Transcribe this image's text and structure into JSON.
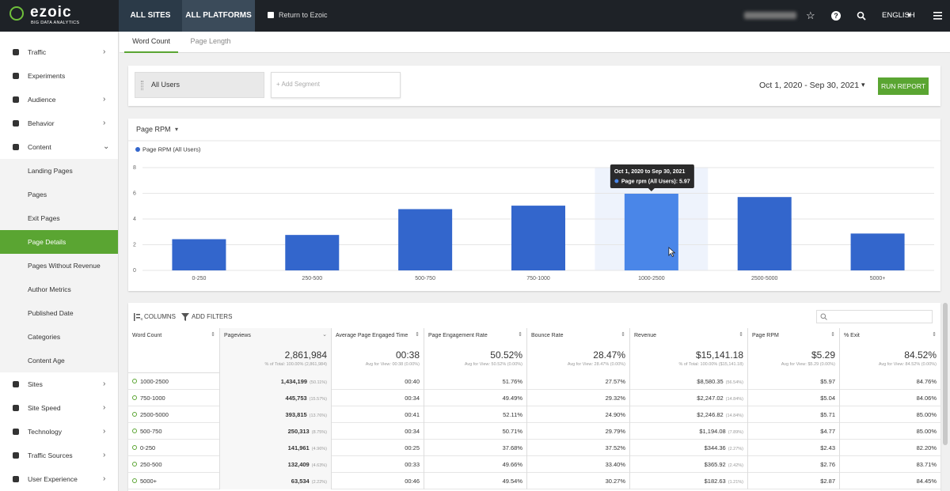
{
  "nav": {
    "logo": "ezoic",
    "logo_sub": "BIG DATA ANALYTICS",
    "tabs": [
      "ALL SITES",
      "ALL PLATFORMS"
    ],
    "return": "Return to Ezoic",
    "language": "ENGLISH"
  },
  "sidebar": [
    {
      "label": "Traffic",
      "chevron": "right"
    },
    {
      "label": "Experiments"
    },
    {
      "label": "Audience",
      "chevron": "right"
    },
    {
      "label": "Behavior",
      "chevron": "right"
    },
    {
      "label": "Content",
      "chevron": "down"
    },
    {
      "label": "Landing Pages",
      "sub": true
    },
    {
      "label": "Pages",
      "sub": true
    },
    {
      "label": "Exit Pages",
      "sub": true
    },
    {
      "label": "Page Details",
      "sub": true,
      "active": true
    },
    {
      "label": "Pages Without Revenue",
      "sub": true
    },
    {
      "label": "Author Metrics",
      "sub": true
    },
    {
      "label": "Published Date",
      "sub": true
    },
    {
      "label": "Categories",
      "sub": true
    },
    {
      "label": "Content Age",
      "sub": true
    },
    {
      "label": "Sites",
      "chevron": "right"
    },
    {
      "label": "Site Speed",
      "chevron": "right"
    },
    {
      "label": "Technology",
      "chevron": "right"
    },
    {
      "label": "Traffic Sources",
      "chevron": "right"
    },
    {
      "label": "User Experience",
      "chevron": "right"
    }
  ],
  "tabs": [
    "Word Count",
    "Page Length"
  ],
  "segment": {
    "current": "All Users",
    "add": "+ Add Segment",
    "date_range": "Oct 1, 2020 - Sep 30, 2021",
    "run": "RUN REPORT"
  },
  "chart_data": {
    "type": "bar",
    "metric": "Page RPM",
    "legend": "Page RPM (All Users)",
    "color": "#3366cc",
    "hover_color": "#4a86e8",
    "categories": [
      "0-250",
      "250-500",
      "500-750",
      "750-1000",
      "1000-2500",
      "2500-5000",
      "5000+"
    ],
    "values": [
      2.43,
      2.76,
      4.77,
      5.04,
      5.97,
      5.71,
      2.87
    ],
    "ylim": [
      0,
      8
    ],
    "yticks": [
      0,
      2,
      4,
      6,
      8
    ],
    "grid": true,
    "tooltip": {
      "title": "Oct 1, 2020 to Sep 30, 2021",
      "label": "Page rpm (All Users): 5.97"
    }
  },
  "table": {
    "toolbar": [
      "COLUMNS",
      "ADD FILTERS"
    ],
    "headers": [
      "Word Count",
      "Pageviews",
      "Average Page Engaged Time",
      "Page Engagement Rate",
      "Bounce Rate",
      "Revenue",
      "Page RPM",
      "% Exit"
    ],
    "totals": [
      {
        "v": "2,861,984",
        "s": "% of Total: 100.00% (2,861,984)"
      },
      {
        "v": "00:38",
        "s": "Avg for View: 00:38 (0.00%)"
      },
      {
        "v": "50.52%",
        "s": "Avg for View: 50.52% (0.00%)"
      },
      {
        "v": "28.47%",
        "s": "Avg for View: 28.47% (0.00%)"
      },
      {
        "v": "$15,141.18",
        "s": "% of Total: 100.00% ($15,141.18)"
      },
      {
        "v": "$5.29",
        "s": "Avg for View: $5.29 (0.00%)"
      },
      {
        "v": "84.52%",
        "s": "Avg for View: 84.52% (0.00%)"
      }
    ],
    "rows": [
      {
        "label": "1000-2500",
        "cells": [
          {
            "v": "1,434,199",
            "s": "(50.11%)"
          },
          {
            "v": "00:40"
          },
          {
            "v": "51.76%"
          },
          {
            "v": "27.57%"
          },
          {
            "v": "$8,580.35",
            "s": "(56.54%)"
          },
          {
            "v": "$5.97"
          },
          {
            "v": "84.76%"
          }
        ]
      },
      {
        "label": "750-1000",
        "cells": [
          {
            "v": "445,753",
            "s": "(15.57%)"
          },
          {
            "v": "00:34"
          },
          {
            "v": "49.49%"
          },
          {
            "v": "29.32%"
          },
          {
            "v": "$2,247.02",
            "s": "(14.84%)"
          },
          {
            "v": "$5.04"
          },
          {
            "v": "84.06%"
          }
        ]
      },
      {
        "label": "2500-5000",
        "cells": [
          {
            "v": "393,815",
            "s": "(13.76%)"
          },
          {
            "v": "00:41"
          },
          {
            "v": "52.11%"
          },
          {
            "v": "24.90%"
          },
          {
            "v": "$2,246.82",
            "s": "(14.84%)"
          },
          {
            "v": "$5.71"
          },
          {
            "v": "85.00%"
          }
        ]
      },
      {
        "label": "500-750",
        "cells": [
          {
            "v": "250,313",
            "s": "(8.75%)"
          },
          {
            "v": "00:34"
          },
          {
            "v": "50.71%"
          },
          {
            "v": "29.79%"
          },
          {
            "v": "$1,194.08",
            "s": "(7.89%)"
          },
          {
            "v": "$4.77"
          },
          {
            "v": "85.00%"
          }
        ]
      },
      {
        "label": "0-250",
        "cells": [
          {
            "v": "141,961",
            "s": "(4.96%)"
          },
          {
            "v": "00:25"
          },
          {
            "v": "37.68%"
          },
          {
            "v": "37.52%"
          },
          {
            "v": "$344.36",
            "s": "(2.27%)"
          },
          {
            "v": "$2.43"
          },
          {
            "v": "82.20%"
          }
        ]
      },
      {
        "label": "250-500",
        "cells": [
          {
            "v": "132,409",
            "s": "(4.63%)"
          },
          {
            "v": "00:33"
          },
          {
            "v": "49.66%"
          },
          {
            "v": "33.40%"
          },
          {
            "v": "$365.92",
            "s": "(2.42%)"
          },
          {
            "v": "$2.76"
          },
          {
            "v": "83.71%"
          }
        ]
      },
      {
        "label": "5000+",
        "cells": [
          {
            "v": "63,534",
            "s": "(2.22%)"
          },
          {
            "v": "00:46"
          },
          {
            "v": "49.54%"
          },
          {
            "v": "30.27%"
          },
          {
            "v": "$182.63",
            "s": "(1.21%)"
          },
          {
            "v": "$2.87"
          },
          {
            "v": "84.45%"
          }
        ]
      }
    ]
  }
}
